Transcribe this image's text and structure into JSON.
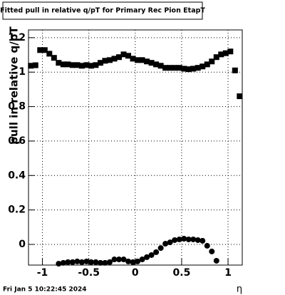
{
  "chart_data": {
    "type": "scatter",
    "title": "Fitted pull in relative q/pT for Primary Rec Pion EtapT",
    "y_label": "pull in relative q/pT",
    "x_label": "η",
    "footer": "Fri Jan  5 10:22:45 2024",
    "x": [
      -1.125,
      -1.075,
      -1.025,
      -0.975,
      -0.925,
      -0.875,
      -0.825,
      -0.775,
      -0.725,
      -0.675,
      -0.625,
      -0.575,
      -0.525,
      -0.475,
      -0.425,
      -0.375,
      -0.325,
      -0.275,
      -0.225,
      -0.175,
      -0.125,
      -0.075,
      -0.025,
      0.025,
      0.075,
      0.125,
      0.175,
      0.225,
      0.275,
      0.325,
      0.375,
      0.425,
      0.475,
      0.525,
      0.575,
      0.625,
      0.675,
      0.725,
      0.775,
      0.825,
      0.875,
      0.925,
      0.975,
      1.025,
      1.075,
      1.125
    ],
    "series": [
      {
        "name": "squares",
        "color": "#000000",
        "marker": "square",
        "values": [
          1.037,
          1.04,
          1.128,
          1.128,
          1.107,
          1.083,
          1.054,
          1.045,
          1.045,
          1.041,
          1.041,
          1.037,
          1.041,
          1.037,
          1.041,
          1.054,
          1.066,
          1.07,
          1.078,
          1.087,
          1.103,
          1.095,
          1.078,
          1.07,
          1.07,
          1.062,
          1.054,
          1.045,
          1.037,
          1.025,
          1.025,
          1.025,
          1.025,
          1.02,
          1.017,
          1.02,
          1.025,
          1.033,
          1.045,
          1.062,
          1.087,
          1.103,
          1.11,
          1.12,
          1.01,
          0.86
        ]
      },
      {
        "name": "circles",
        "color": "#000000",
        "marker": "circle",
        "values": [
          null,
          null,
          null,
          null,
          null,
          null,
          -0.112,
          -0.107,
          -0.103,
          -0.103,
          -0.099,
          -0.103,
          -0.099,
          -0.103,
          -0.103,
          -0.107,
          -0.107,
          -0.103,
          -0.087,
          -0.087,
          -0.087,
          -0.099,
          -0.103,
          -0.099,
          -0.087,
          -0.074,
          -0.062,
          -0.045,
          -0.021,
          0.004,
          0.012,
          0.025,
          0.029,
          0.033,
          0.029,
          0.029,
          0.025,
          0.021,
          -0.008,
          -0.041,
          -0.095,
          null,
          null,
          null,
          null,
          null
        ]
      }
    ],
    "xlim": [
      -1.15,
      1.153
    ],
    "ylim": [
      -0.12,
      1.245
    ],
    "xticks": [
      -1,
      -0.5,
      0,
      0.5,
      1
    ],
    "yticks": [
      0,
      0.2,
      0.4,
      0.6,
      0.8,
      1,
      1.2
    ],
    "grid": true
  }
}
